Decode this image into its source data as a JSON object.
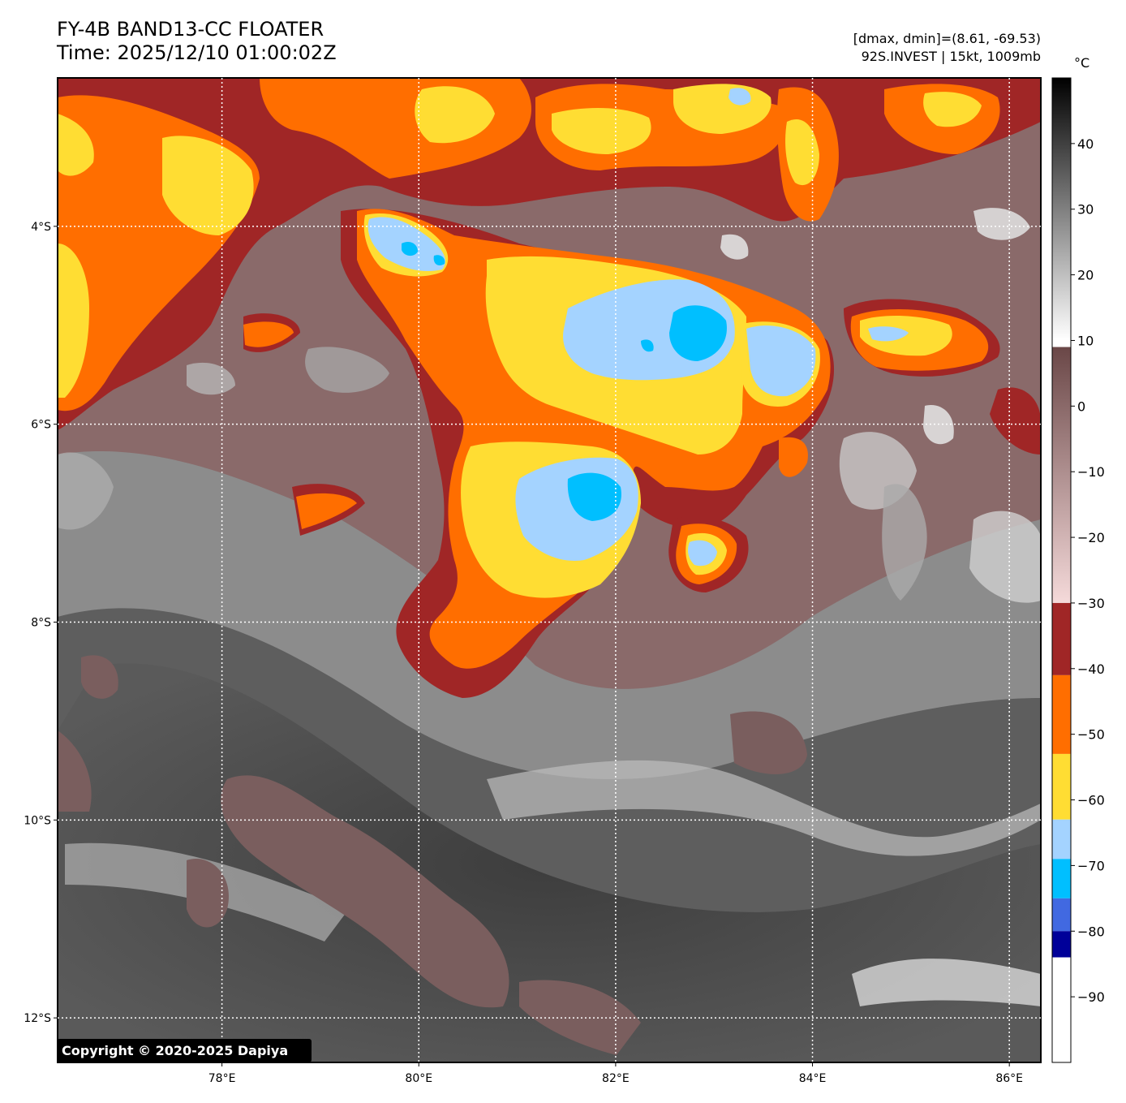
{
  "header": {
    "title_line1": "FY-4B BAND13-CC FLOATER",
    "title_line2": "Time: 2025/12/10 01:00:02Z",
    "info_line1": "[dmax, dmin]=(8.61, -69.53)",
    "info_line2": "92S.INVEST | 15kt, 1009mb"
  },
  "map": {
    "lat_labels": [
      "4°S",
      "6°S",
      "8°S",
      "10°S",
      "12°S"
    ],
    "lon_labels": [
      "78°E",
      "80°E",
      "82°E",
      "84°E",
      "86°E"
    ],
    "lat_values": [
      -4,
      -6,
      -8,
      -10,
      -12
    ],
    "lon_values": [
      78,
      80,
      82,
      84,
      86
    ],
    "lat_range": [
      -12.45,
      -2.5
    ],
    "lon_range": [
      76.33,
      86.32
    ],
    "copyright": "Copyright © 2020-2025 Dapiya"
  },
  "colorbar": {
    "unit": "°C",
    "range": [
      -100,
      50
    ],
    "ticks": [
      40,
      30,
      20,
      10,
      0,
      -10,
      -20,
      -30,
      -40,
      -50,
      -60,
      -70,
      -80,
      -90
    ],
    "segments": [
      {
        "from": 10,
        "to": 50,
        "colors": [
          "#ffffff",
          "#000000"
        ]
      },
      {
        "from": -30,
        "to": 9,
        "colors": [
          "#f5dada",
          "#6a4747"
        ]
      },
      {
        "from": -41,
        "to": -30,
        "colors": [
          "#a02626",
          "#a02626"
        ]
      },
      {
        "from": -53,
        "to": -41,
        "colors": [
          "#ff6e00",
          "#ff6e00"
        ]
      },
      {
        "from": -63,
        "to": -53,
        "colors": [
          "#ffdd33",
          "#ffdd33"
        ]
      },
      {
        "from": -69,
        "to": -63,
        "colors": [
          "#a4d3ff",
          "#a4d3ff"
        ]
      },
      {
        "from": -75,
        "to": -69,
        "colors": [
          "#00bfff",
          "#00bfff"
        ]
      },
      {
        "from": -80,
        "to": -75,
        "colors": [
          "#4169e1",
          "#4169e1"
        ]
      },
      {
        "from": -84,
        "to": -80,
        "colors": [
          "#000099",
          "#000099"
        ]
      },
      {
        "from": -100,
        "to": -84,
        "colors": [
          "#ffffff",
          "#ffffff"
        ]
      }
    ]
  }
}
